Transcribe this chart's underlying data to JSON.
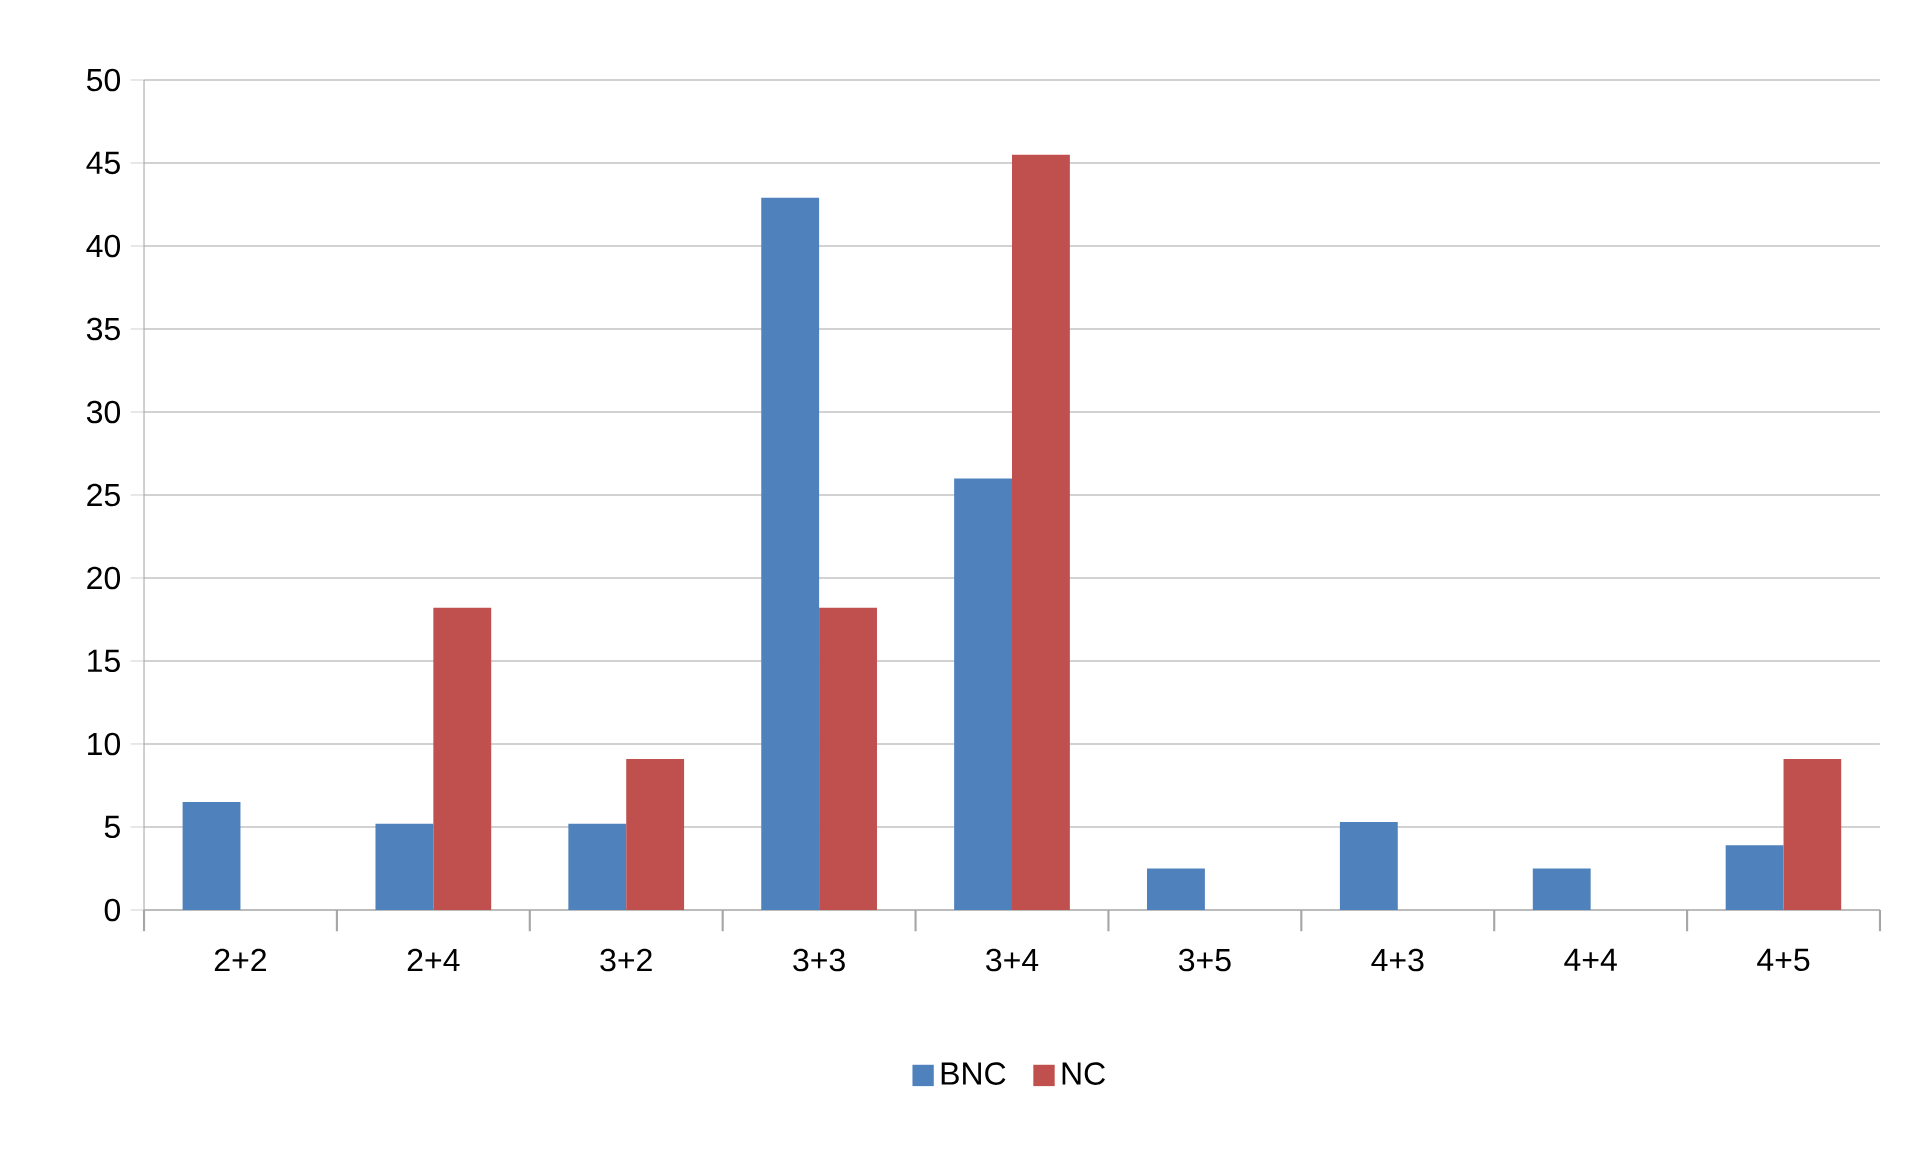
{
  "chart_data": {
    "type": "bar",
    "categories": [
      "2+2",
      "2+4",
      "3+2",
      "3+3",
      "3+4",
      "3+5",
      "4+3",
      "4+4",
      "4+5"
    ],
    "series": [
      {
        "name": "BNC",
        "color": "#4f81bd",
        "values": [
          6.5,
          5.2,
          5.2,
          42.9,
          26.0,
          2.5,
          5.3,
          2.5,
          3.9
        ]
      },
      {
        "name": "NC",
        "color": "#c0504d",
        "values": [
          0,
          18.2,
          9.1,
          18.2,
          45.5,
          0,
          0,
          0,
          9.1
        ]
      }
    ],
    "ylim": [
      0,
      50
    ],
    "yticks": [
      0,
      5,
      10,
      15,
      20,
      25,
      30,
      35,
      40,
      45,
      50
    ],
    "grid": "y",
    "legend": "bottom"
  }
}
